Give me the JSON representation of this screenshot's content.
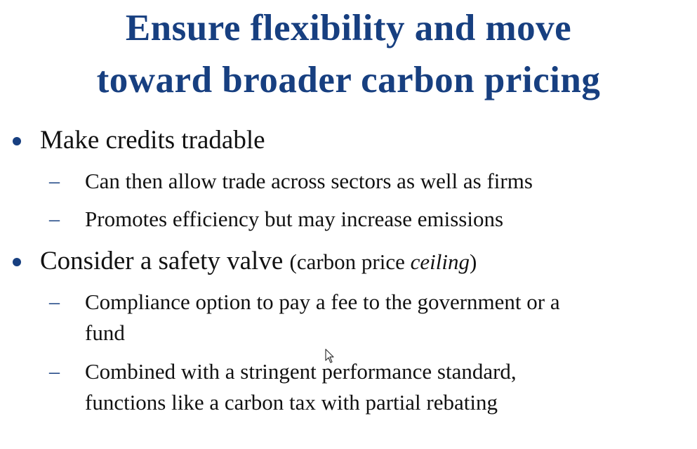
{
  "title": {
    "line1": "Ensure flexibility and move",
    "line2": "toward broader carbon pricing"
  },
  "bullets": [
    {
      "text": "Make credits tradable",
      "subitems": [
        {
          "lines": [
            "Can then allow trade across sectors as well as firms"
          ]
        },
        {
          "lines": [
            "Promotes efficiency but may increase emissions"
          ]
        }
      ]
    },
    {
      "text": "Consider a safety valve",
      "paren_open": "(carbon price ",
      "paren_italic": "ceiling",
      "paren_close": ")",
      "subitems": [
        {
          "lines": [
            "Compliance option to pay a fee to the government or a",
            "fund"
          ]
        },
        {
          "lines": [
            "Combined with a stringent performance standard,",
            "functions like a carbon tax with partial rebating"
          ]
        }
      ]
    }
  ],
  "dash_glyph": "–",
  "colors": {
    "title": "#173f80",
    "bullet": "#173f80",
    "text": "#111111",
    "background": "#ffffff"
  },
  "icons": {
    "cursor": "mouse-pointer-icon"
  }
}
